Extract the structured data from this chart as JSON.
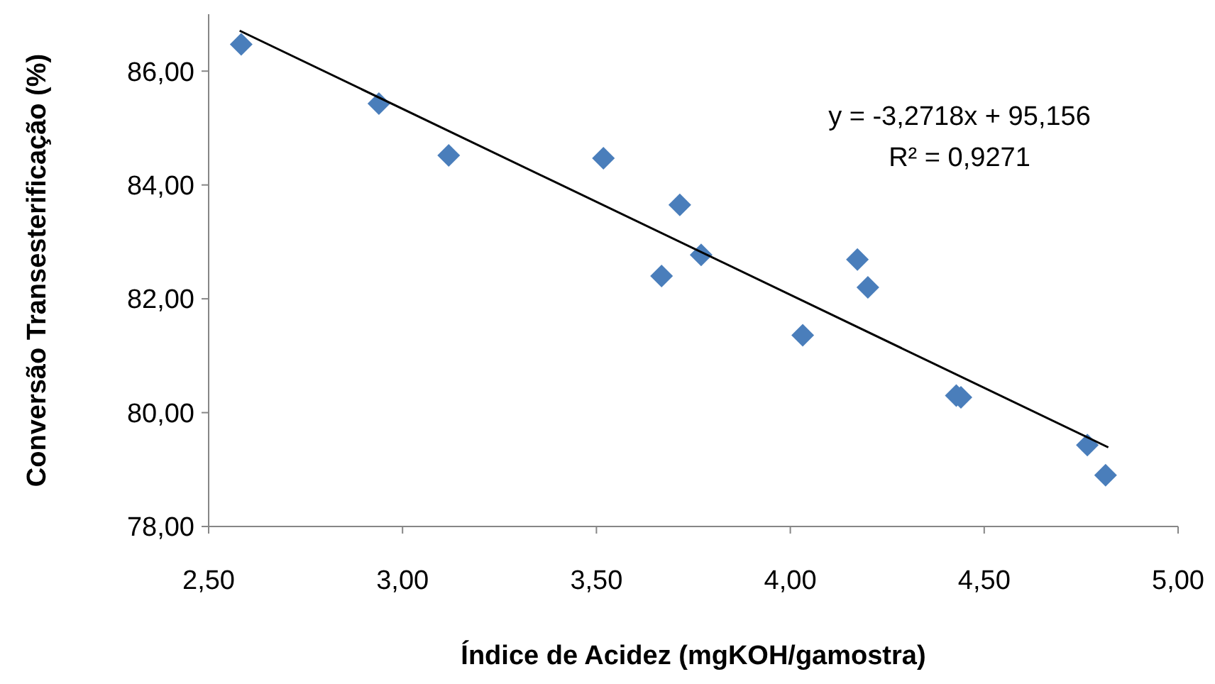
{
  "chart_data": {
    "type": "scatter",
    "xlabel": "Índice de Acidez (mgKOH/gamostra)",
    "ylabel": "Conversão Transesterificação (%)",
    "xlim": [
      2.5,
      5
    ],
    "xticks": [
      {
        "value": 2.5,
        "label": "2,50"
      },
      {
        "value": 3,
        "label": "3,00"
      },
      {
        "value": 3.5,
        "label": "3,50"
      },
      {
        "value": 4,
        "label": "4,00"
      },
      {
        "value": 4.5,
        "label": "4,50"
      },
      {
        "value": 5,
        "label": "5,00"
      }
    ],
    "ylim": [
      78,
      87
    ],
    "yticks": [
      {
        "value": 78,
        "label": "78,00"
      },
      {
        "value": 80,
        "label": "80,00"
      },
      {
        "value": 82,
        "label": "82,00"
      },
      {
        "value": 84,
        "label": "84,00"
      },
      {
        "value": 86,
        "label": "86,00"
      }
    ],
    "grid": false,
    "marker": "diamond",
    "series": [
      {
        "color": "#4a7ebb",
        "x": [
          2.584,
          2.939,
          3.119,
          3.518,
          3.715,
          3.668,
          3.77,
          4.173,
          4.2,
          4.032,
          4.428,
          4.44,
          4.766,
          4.813
        ],
        "values": [
          86.47,
          85.43,
          84.52,
          84.47,
          83.65,
          82.4,
          82.77,
          82.69,
          82.2,
          81.36,
          80.3,
          80.27,
          79.43,
          78.9
        ]
      },
      {
        "type": "line",
        "color": "#000000",
        "line_style": "solid",
        "marker": "none",
        "x": [
          2.58,
          4.82
        ],
        "values": [
          86.71,
          79.39
        ]
      }
    ],
    "annotations": [
      "y = -3,2718x + 95,156",
      "R² = 0,9271"
    ]
  }
}
